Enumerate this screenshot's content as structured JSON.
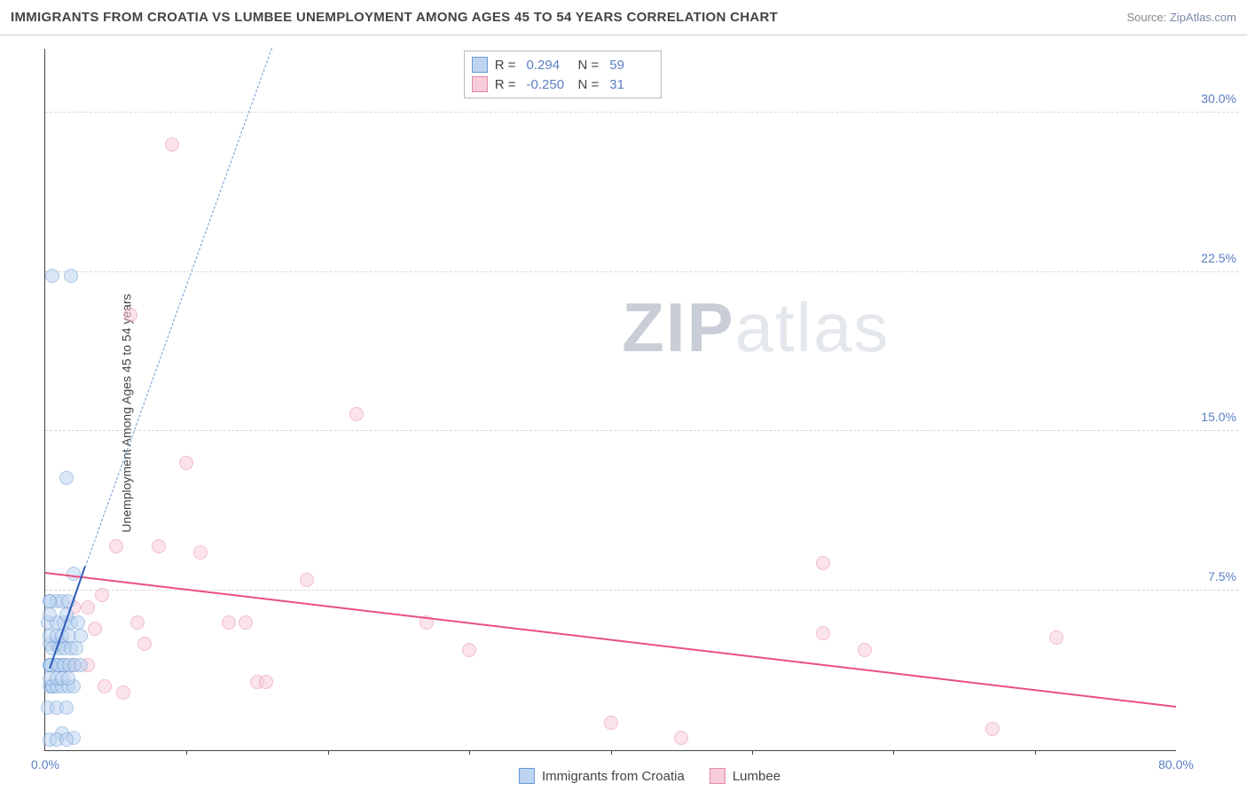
{
  "title": "IMMIGRANTS FROM CROATIA VS LUMBEE UNEMPLOYMENT AMONG AGES 45 TO 54 YEARS CORRELATION CHART",
  "source_prefix": "Source: ",
  "source_link": "ZipAtlas.com",
  "y_axis_label": "Unemployment Among Ages 45 to 54 years",
  "watermark": {
    "part1": "ZIP",
    "part2": "atlas"
  },
  "chart": {
    "type": "scatter",
    "background_color": "#ffffff",
    "grid_color": "#d8d8d8",
    "axis_color": "#444444",
    "tick_color": "#5a7fc4",
    "title_fontsize": 15,
    "label_fontsize": 14,
    "xlim": [
      0,
      80
    ],
    "ylim": [
      0,
      33
    ],
    "xticks": [
      0,
      80
    ],
    "xtick_labels": [
      "0.0%",
      "80.0%"
    ],
    "x_minor_ticks": [
      10,
      20,
      30,
      40,
      50,
      60,
      70
    ],
    "yticks": [
      7.5,
      15.0,
      22.5,
      30.0
    ],
    "ytick_labels": [
      "7.5%",
      "15.0%",
      "22.5%",
      "30.0%"
    ],
    "series": {
      "croatia": {
        "label": "Immigrants from Croatia",
        "fill": "#bcd4f0",
        "stroke": "#6a9ad4",
        "fill_opacity": 0.55,
        "marker_size": 16,
        "points": [
          [
            0.5,
            22.3
          ],
          [
            1.8,
            22.3
          ],
          [
            1.5,
            12.8
          ],
          [
            0.3,
            3.0
          ],
          [
            0.5,
            3.0
          ],
          [
            0.3,
            4.0
          ],
          [
            0.8,
            4.0
          ],
          [
            0.3,
            5.0
          ],
          [
            0.8,
            5.0
          ],
          [
            1.2,
            5.0
          ],
          [
            0.2,
            6.0
          ],
          [
            0.8,
            6.0
          ],
          [
            1.3,
            6.0
          ],
          [
            1.8,
            6.0
          ],
          [
            2.3,
            6.0
          ],
          [
            0.3,
            7.0
          ],
          [
            0.8,
            7.0
          ],
          [
            1.2,
            7.0
          ],
          [
            1.6,
            7.0
          ],
          [
            0.3,
            7.0
          ],
          [
            0.2,
            2.0
          ],
          [
            0.8,
            2.0
          ],
          [
            1.5,
            2.0
          ],
          [
            1.2,
            0.8
          ],
          [
            2.0,
            0.6
          ],
          [
            0.3,
            0.5
          ],
          [
            0.8,
            0.5
          ],
          [
            1.5,
            0.5
          ],
          [
            0.3,
            4.0
          ],
          [
            1.0,
            4.0
          ],
          [
            1.4,
            4.0
          ],
          [
            0.5,
            3.0
          ],
          [
            0.8,
            3.0
          ],
          [
            1.2,
            3.0
          ],
          [
            1.6,
            3.0
          ],
          [
            2.0,
            3.0
          ],
          [
            0.3,
            3.4
          ],
          [
            0.8,
            3.4
          ],
          [
            1.2,
            3.4
          ],
          [
            1.6,
            3.4
          ],
          [
            0.4,
            4.0
          ],
          [
            0.9,
            4.0
          ],
          [
            1.3,
            4.0
          ],
          [
            1.7,
            4.0
          ],
          [
            2.1,
            4.0
          ],
          [
            2.5,
            4.0
          ],
          [
            0.5,
            4.8
          ],
          [
            1.0,
            4.8
          ],
          [
            1.4,
            4.8
          ],
          [
            1.8,
            4.8
          ],
          [
            2.2,
            4.8
          ],
          [
            0.3,
            5.4
          ],
          [
            0.8,
            5.4
          ],
          [
            1.2,
            5.4
          ],
          [
            1.7,
            5.4
          ],
          [
            2.5,
            5.4
          ],
          [
            0.3,
            6.4
          ],
          [
            1.5,
            6.4
          ],
          [
            2.0,
            8.3
          ]
        ],
        "trend": {
          "color": "#2b5cb8",
          "width": 2.5,
          "x1": 0.3,
          "y1": 3.8,
          "x2": 2.8,
          "y2": 8.6,
          "dashed_ext": {
            "x1": 2.8,
            "y1": 8.6,
            "x2": 16.0,
            "y2": 33.0,
            "color": "#6a9ad4"
          }
        }
      },
      "lumbee": {
        "label": "Lumbee",
        "fill": "#f7cdd9",
        "stroke": "#e88aa6",
        "fill_opacity": 0.55,
        "marker_size": 16,
        "points": [
          [
            9.0,
            28.5
          ],
          [
            6.0,
            20.5
          ],
          [
            22.0,
            15.8
          ],
          [
            10.0,
            13.5
          ],
          [
            5.0,
            9.6
          ],
          [
            8.0,
            9.6
          ],
          [
            11.0,
            9.3
          ],
          [
            18.5,
            8.0
          ],
          [
            4.0,
            7.3
          ],
          [
            6.5,
            6.0
          ],
          [
            2.0,
            6.7
          ],
          [
            3.0,
            6.7
          ],
          [
            13.0,
            6.0
          ],
          [
            14.2,
            6.0
          ],
          [
            27.0,
            6.0
          ],
          [
            55.0,
            8.8
          ],
          [
            15.0,
            3.2
          ],
          [
            15.6,
            3.2
          ],
          [
            4.2,
            3.0
          ],
          [
            5.5,
            2.7
          ],
          [
            2.0,
            4.0
          ],
          [
            3.0,
            4.0
          ],
          [
            30.0,
            4.7
          ],
          [
            55.0,
            5.5
          ],
          [
            58.0,
            4.7
          ],
          [
            67.0,
            1.0
          ],
          [
            40.0,
            1.3
          ],
          [
            45.0,
            0.6
          ],
          [
            71.5,
            5.3
          ],
          [
            7.0,
            5.0
          ],
          [
            3.5,
            5.7
          ]
        ],
        "trend": {
          "color": "#e94f80",
          "width": 2.5,
          "x1": 0,
          "y1": 8.3,
          "x2": 80,
          "y2": 2.0
        }
      }
    }
  },
  "stats_box": {
    "rows": [
      {
        "swatch_fill": "#bcd4f0",
        "swatch_stroke": "#6a9ad4",
        "r_label": "R =",
        "r": "0.294",
        "n_label": "N =",
        "n": "59"
      },
      {
        "swatch_fill": "#f7cdd9",
        "swatch_stroke": "#e88aa6",
        "r_label": "R =",
        "r": "-0.250",
        "n_label": "N =",
        "n": "31"
      }
    ]
  },
  "bottom_legend": [
    {
      "swatch_fill": "#bcd4f0",
      "swatch_stroke": "#6a9ad4",
      "label": "Immigrants from Croatia"
    },
    {
      "swatch_fill": "#f7cdd9",
      "swatch_stroke": "#e88aa6",
      "label": "Lumbee"
    }
  ]
}
